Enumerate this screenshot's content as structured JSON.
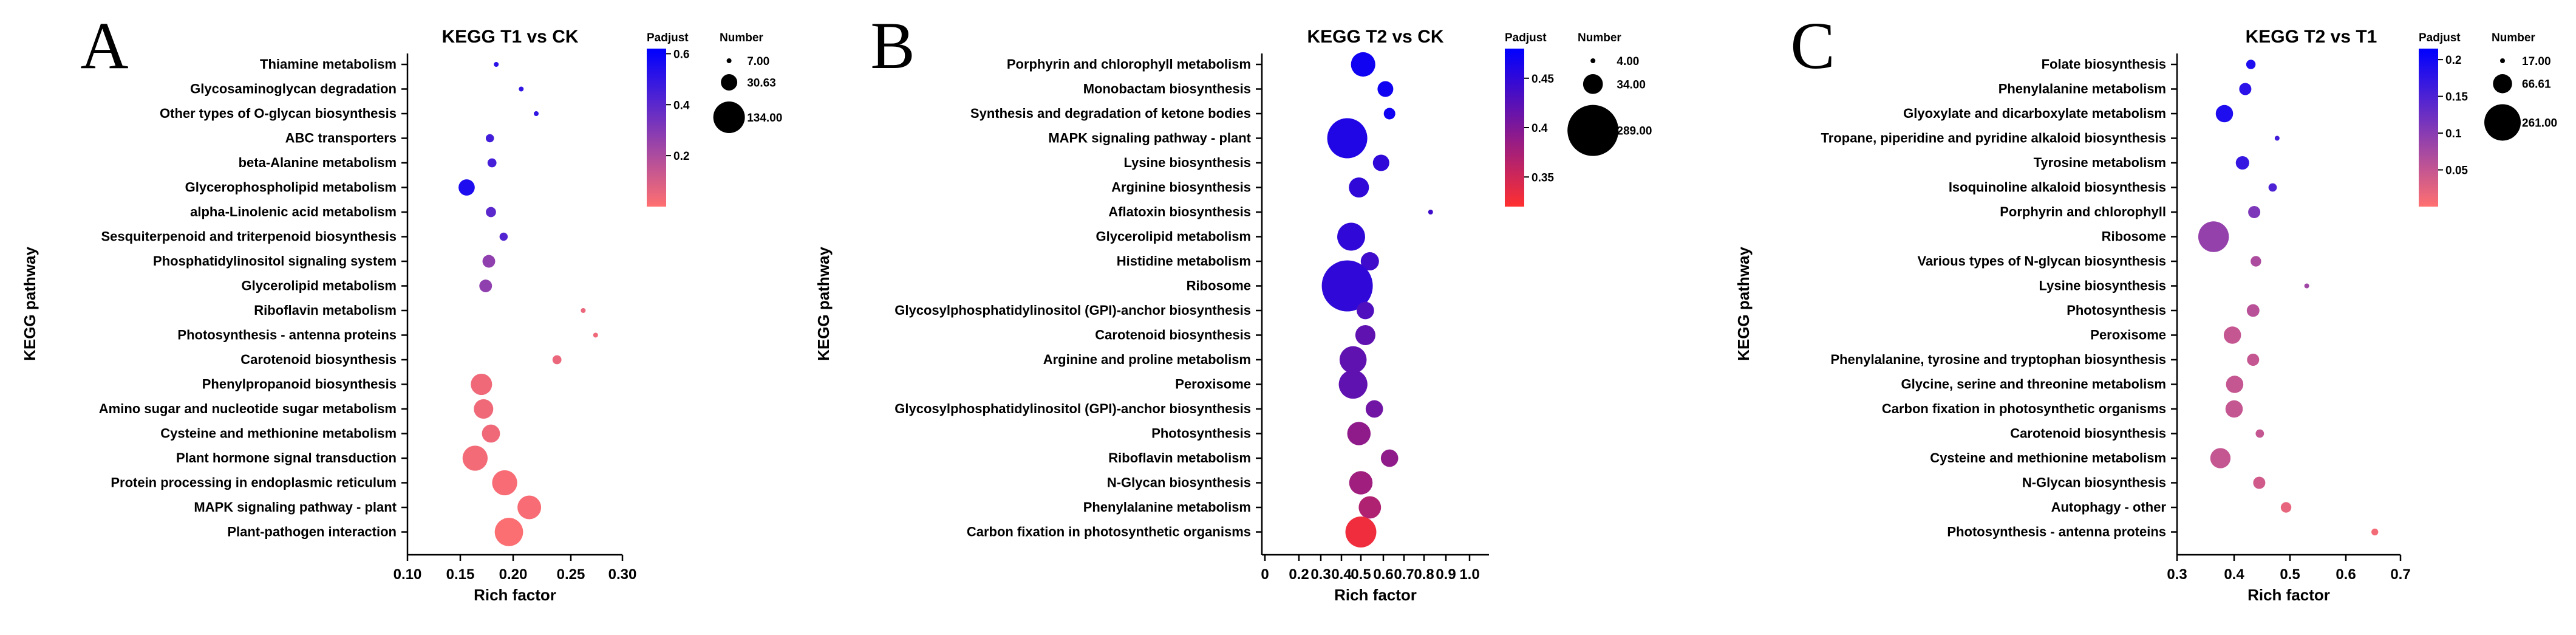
{
  "chart_data": [
    {
      "panel": "A",
      "type": "scatter",
      "title": "KEGG T1 vs CK",
      "xlabel": "Rich factor",
      "ylabel": "KEGG pathway",
      "xlim": [
        0.1,
        0.3
      ],
      "xticks": [
        "0.10",
        "0.15",
        "0.20",
        "0.25",
        "0.30"
      ],
      "color_legend": {
        "title": "Padjust",
        "min": 0.0,
        "max": 0.62,
        "ticks": [
          "0.2",
          "0.4",
          "0.6"
        ],
        "colors": [
          "#0000ff",
          "#ff7070"
        ]
      },
      "size_legend": {
        "title": "Number",
        "labels": [
          "7.00",
          "30.63",
          "134.00"
        ],
        "values": [
          7,
          30.63,
          134
        ]
      },
      "points": [
        {
          "pathway": "Thiamine metabolism",
          "rich": 0.184,
          "padj": 0.52,
          "number": 7
        },
        {
          "pathway": "Glycosaminoglycan degradation",
          "rich": 0.207,
          "padj": 0.5,
          "number": 7
        },
        {
          "pathway": "Other types of O-glycan biosynthesis",
          "rich": 0.22,
          "padj": 0.5,
          "number": 5
        },
        {
          "pathway": "ABC transporters",
          "rich": 0.178,
          "padj": 0.46,
          "number": 9
        },
        {
          "pathway": "beta-Alanine metabolism",
          "rich": 0.18,
          "padj": 0.45,
          "number": 10
        },
        {
          "pathway": "Glycerophospholipid metabolism",
          "rich": 0.156,
          "padj": 0.55,
          "number": 30
        },
        {
          "pathway": "alpha-Linolenic acid metabolism",
          "rich": 0.179,
          "padj": 0.4,
          "number": 12
        },
        {
          "pathway": "Sesquiterpenoid and triterpenoid biosynthesis",
          "rich": 0.191,
          "padj": 0.42,
          "number": 9
        },
        {
          "pathway": "Phosphatidylinositol signaling system",
          "rich": 0.177,
          "padj": 0.27,
          "number": 18
        },
        {
          "pathway": "Glycerolipid metabolism",
          "rich": 0.174,
          "padj": 0.27,
          "number": 18
        },
        {
          "pathway": "Riboflavin metabolism",
          "rich": 0.262,
          "padj": 0.05,
          "number": 6
        },
        {
          "pathway": "Photosynthesis - antenna proteins",
          "rich": 0.274,
          "padj": 0.04,
          "number": 5
        },
        {
          "pathway": "Carotenoid biosynthesis",
          "rich": 0.238,
          "padj": 0.05,
          "number": 10
        },
        {
          "pathway": "Phenylpropanoid biosynthesis",
          "rich": 0.17,
          "padj": 0.04,
          "number": 55
        },
        {
          "pathway": "Amino sugar and nucleotide sugar metabolism",
          "rich": 0.172,
          "padj": 0.04,
          "number": 45
        },
        {
          "pathway": "Cysteine and methionine metabolism",
          "rich": 0.179,
          "padj": 0.04,
          "number": 38
        },
        {
          "pathway": "Plant hormone signal transduction",
          "rich": 0.164,
          "padj": 0.03,
          "number": 80
        },
        {
          "pathway": "Protein processing in endoplasmic reticulum",
          "rich": 0.192,
          "padj": 0.02,
          "number": 80
        },
        {
          "pathway": "MAPK signaling pathway - plant",
          "rich": 0.214,
          "padj": 0.02,
          "number": 70
        },
        {
          "pathway": "Plant-pathogen interaction",
          "rich": 0.196,
          "padj": 0.01,
          "number": 105
        }
      ]
    },
    {
      "panel": "B",
      "type": "scatter",
      "title": "KEGG T2 vs CK",
      "xlabel": "Rich factor",
      "ylabel": "KEGG pathway",
      "xlim": [
        0,
        1.05
      ],
      "xticks": [
        "0",
        "0.2",
        "0.3",
        "0.4",
        "0.5",
        "0.6",
        "0.7",
        "0.8",
        "0.9",
        "1.0"
      ],
      "color_legend": {
        "title": "Padjust",
        "min": 0.32,
        "max": 0.48,
        "ticks": [
          "0.45",
          "0.4",
          "0.35"
        ],
        "colors": [
          "#0000ff",
          "#ff3030"
        ]
      },
      "size_legend": {
        "title": "Number",
        "labels": [
          "4.00",
          "34.00",
          "289.00"
        ],
        "values": [
          4,
          34,
          289
        ]
      },
      "points": [
        {
          "pathway": "Porphyrin and chlorophyll metabolism",
          "rich": 0.51,
          "padj": 0.47,
          "number": 55
        },
        {
          "pathway": "Monobactam biosynthesis",
          "rich": 0.61,
          "padj": 0.47,
          "number": 20
        },
        {
          "pathway": "Synthesis and degradation of ketone bodies",
          "rich": 0.63,
          "padj": 0.47,
          "number": 10
        },
        {
          "pathway": "MAPK signaling pathway - plant",
          "rich": 0.43,
          "padj": 0.46,
          "number": 170
        },
        {
          "pathway": "Lysine biosynthesis",
          "rich": 0.59,
          "padj": 0.45,
          "number": 22
        },
        {
          "pathway": "Arginine biosynthesis",
          "rich": 0.49,
          "padj": 0.45,
          "number": 35
        },
        {
          "pathway": "Aflatoxin biosynthesis",
          "rich": 0.83,
          "padj": 0.44,
          "number": 4
        },
        {
          "pathway": "Glycerolipid metabolism",
          "rich": 0.45,
          "padj": 0.45,
          "number": 75
        },
        {
          "pathway": "Histidine metabolism",
          "rich": 0.54,
          "padj": 0.44,
          "number": 28
        },
        {
          "pathway": "Ribosome",
          "rich": 0.43,
          "padj": 0.45,
          "number": 289
        },
        {
          "pathway": "Glycosylphosphatidylinositol (GPI)-anchor biosynthesis",
          "rich": 0.52,
          "padj": 0.43,
          "number": 25
        },
        {
          "pathway": "Carotenoid biosynthesis",
          "rich": 0.52,
          "padj": 0.42,
          "number": 35
        },
        {
          "pathway": "Arginine and proline metabolism",
          "rich": 0.46,
          "padj": 0.42,
          "number": 70
        },
        {
          "pathway": "Peroxisome",
          "rich": 0.46,
          "padj": 0.42,
          "number": 80
        },
        {
          "pathway": "Glycosylphosphatidylinositol (GPI)-anchor biosynthesis",
          "rich": 0.56,
          "padj": 0.41,
          "number": 25
        },
        {
          "pathway": "Photosynthesis",
          "rich": 0.49,
          "padj": 0.39,
          "number": 50
        },
        {
          "pathway": "Riboflavin metabolism",
          "rich": 0.63,
          "padj": 0.39,
          "number": 25
        },
        {
          "pathway": "N-Glycan biosynthesis",
          "rich": 0.5,
          "padj": 0.38,
          "number": 50
        },
        {
          "pathway": "Phenylalanine metabolism",
          "rich": 0.54,
          "padj": 0.37,
          "number": 45
        },
        {
          "pathway": "Carbon fixation in photosynthetic organisms",
          "rich": 0.5,
          "padj": 0.33,
          "number": 95
        }
      ]
    },
    {
      "panel": "C",
      "type": "scatter",
      "title": "KEGG T2 vs T1",
      "xlabel": "Rich factor",
      "ylabel": "KEGG pathway",
      "xlim": [
        0.3,
        0.7
      ],
      "xticks": [
        "0.3",
        "0.4",
        "0.5",
        "0.6",
        "0.7"
      ],
      "color_legend": {
        "title": "Padjust",
        "min": 0.0,
        "max": 0.215,
        "ticks": [
          "0.2",
          "0.15",
          "0.1",
          "0.05"
        ],
        "colors": [
          "#0000ff",
          "#ff7070"
        ]
      },
      "size_legend": {
        "title": "Number",
        "labels": [
          "17.00",
          "66.61",
          "261.00"
        ],
        "values": [
          17,
          66.61,
          261
        ]
      },
      "points": [
        {
          "pathway": "Folate biosynthesis",
          "rich": 0.43,
          "padj": 0.19,
          "number": 22
        },
        {
          "pathway": "Phenylalanine metabolism",
          "rich": 0.42,
          "padj": 0.18,
          "number": 30
        },
        {
          "pathway": "Glyoxylate and dicarboxylate metabolism",
          "rich": 0.383,
          "padj": 0.19,
          "number": 55
        },
        {
          "pathway": "Tropane, piperidine and pyridine alkaloid biosynthesis",
          "rich": 0.477,
          "padj": 0.16,
          "number": 17
        },
        {
          "pathway": "Tyrosine metabolism",
          "rich": 0.415,
          "padj": 0.17,
          "number": 35
        },
        {
          "pathway": "Isoquinoline alkaloid biosynthesis",
          "rich": 0.469,
          "padj": 0.15,
          "number": 20
        },
        {
          "pathway": "Porphyrin and chlorophyll",
          "rich": 0.436,
          "padj": 0.11,
          "number": 30
        },
        {
          "pathway": "Ribosome",
          "rich": 0.364,
          "padj": 0.09,
          "number": 180
        },
        {
          "pathway": "Various types of N-glycan biosynthesis",
          "rich": 0.439,
          "padj": 0.07,
          "number": 25
        },
        {
          "pathway": "Lysine biosynthesis",
          "rich": 0.53,
          "padj": 0.08,
          "number": 14
        },
        {
          "pathway": "Photosynthesis",
          "rich": 0.434,
          "padj": 0.06,
          "number": 32
        },
        {
          "pathway": "Peroxisome",
          "rich": 0.397,
          "padj": 0.05,
          "number": 55
        },
        {
          "pathway": "Phenylalanine, tyrosine and tryptophan biosynthesis",
          "rich": 0.434,
          "padj": 0.05,
          "number": 30
        },
        {
          "pathway": "Glycine, serine and threonine metabolism",
          "rich": 0.401,
          "padj": 0.05,
          "number": 55
        },
        {
          "pathway": "Carbon fixation in photosynthetic organisms",
          "rich": 0.4,
          "padj": 0.05,
          "number": 55
        },
        {
          "pathway": "Carotenoid biosynthesis",
          "rich": 0.446,
          "padj": 0.05,
          "number": 20
        },
        {
          "pathway": "Cysteine and methionine metabolism",
          "rich": 0.376,
          "padj": 0.05,
          "number": 75
        },
        {
          "pathway": "N-Glycan biosynthesis",
          "rich": 0.445,
          "padj": 0.04,
          "number": 30
        },
        {
          "pathway": "Autophagy - other",
          "rich": 0.493,
          "padj": 0.02,
          "number": 25
        },
        {
          "pathway": "Photosynthesis - antenna proteins",
          "rich": 0.653,
          "padj": 0.01,
          "number": 18
        }
      ]
    }
  ]
}
